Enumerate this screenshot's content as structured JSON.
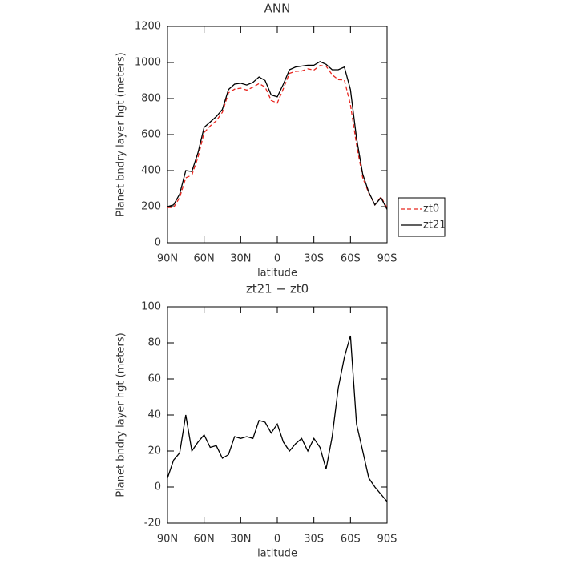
{
  "chart_data": [
    {
      "type": "line",
      "title": "ANN",
      "x_label": "latitude",
      "y_label": "Planet bndry layer hgt (meters)",
      "x": [
        90,
        85,
        80,
        75,
        70,
        65,
        60,
        55,
        50,
        45,
        40,
        35,
        30,
        25,
        20,
        15,
        10,
        5,
        0,
        -5,
        -10,
        -15,
        -20,
        -25,
        -30,
        -35,
        -40,
        -45,
        -50,
        -55,
        -60,
        -65,
        -70,
        -75,
        -80,
        -85,
        -90
      ],
      "series": [
        {
          "name": "zt0",
          "color": "#e8261f",
          "dash": true,
          "values": [
            195,
            195,
            251,
            360,
            375,
            475,
            611,
            648,
            677,
            724,
            832,
            852,
            858,
            847,
            863,
            883,
            864,
            790,
            775,
            855,
            940,
            951,
            953,
            965,
            958,
            983,
            980,
            932,
            905,
            903,
            766,
            545,
            360,
            275,
            210,
            254,
            193
          ]
        },
        {
          "name": "zt21",
          "color": "#000000",
          "dash": false,
          "values": [
            200,
            210,
            270,
            400,
            395,
            500,
            640,
            670,
            700,
            740,
            850,
            880,
            885,
            875,
            890,
            920,
            900,
            820,
            810,
            880,
            960,
            975,
            980,
            985,
            985,
            1005,
            990,
            960,
            960,
            975,
            850,
            580,
            380,
            280,
            210,
            250,
            185
          ]
        }
      ],
      "xlim": [
        90,
        -90
      ],
      "xticks": [
        {
          "value": 90,
          "label": "90N"
        },
        {
          "value": 60,
          "label": "60N"
        },
        {
          "value": 30,
          "label": "30N"
        },
        0,
        {
          "value": -30,
          "label": "30S"
        },
        {
          "value": -60,
          "label": "60S"
        },
        {
          "value": -90,
          "label": "90S"
        }
      ],
      "ylim": [
        0,
        1200
      ],
      "yticks": [
        0,
        200,
        400,
        600,
        800,
        1000,
        1200
      ],
      "legend": "right"
    },
    {
      "type": "line",
      "title": "zt21 − zt0",
      "x_label": "latitude",
      "y_label": "Planet bndry layer hgt (meters)",
      "x": [
        90,
        85,
        80,
        75,
        70,
        65,
        60,
        55,
        50,
        45,
        40,
        35,
        30,
        25,
        20,
        15,
        10,
        5,
        0,
        -5,
        -10,
        -15,
        -20,
        -25,
        -30,
        -35,
        -40,
        -45,
        -50,
        -55,
        -60,
        -65,
        -70,
        -75,
        -80,
        -85,
        -90
      ],
      "series": [
        {
          "color": "#000000",
          "dash": false,
          "values": [
            5,
            15,
            19,
            40,
            20,
            25,
            29,
            22,
            23,
            16,
            18,
            28,
            27,
            28,
            27,
            37,
            36,
            30,
            35,
            25,
            20,
            24,
            27,
            20,
            27,
            22,
            10,
            28,
            55,
            72,
            84,
            35,
            20,
            5,
            0,
            -4,
            -8
          ]
        }
      ],
      "xlim": [
        90,
        -90
      ],
      "xticks": [
        {
          "value": 90,
          "label": "90N"
        },
        {
          "value": 60,
          "label": "60N"
        },
        {
          "value": 30,
          "label": "30N"
        },
        0,
        {
          "value": -30,
          "label": "30S"
        },
        {
          "value": -60,
          "label": "60S"
        },
        {
          "value": -90,
          "label": "90S"
        }
      ],
      "ylim": [
        -20,
        100
      ],
      "yticks": [
        -20,
        0,
        20,
        40,
        60,
        80,
        100
      ]
    }
  ]
}
